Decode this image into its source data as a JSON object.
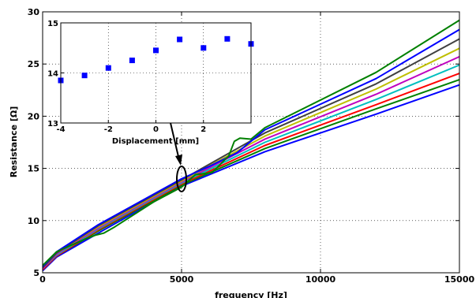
{
  "chart_data": [
    {
      "id": "main",
      "type": "line",
      "xlabel": "frequency [Hz]",
      "ylabel": "Resistance [Ω]",
      "xlim": [
        0,
        15000
      ],
      "ylim": [
        5,
        30
      ],
      "xticks": [
        0,
        5000,
        10000,
        15000
      ],
      "yticks": [
        5,
        10,
        15,
        20,
        25,
        30
      ],
      "grid": true,
      "series": [
        {
          "color": "#0000ff",
          "values": [
            [
              0,
              5.2
            ],
            [
              500,
              6.5
            ],
            [
              2000,
              8.8
            ],
            [
              5000,
              13.3
            ],
            [
              8000,
              16.6
            ],
            [
              12000,
              20.2
            ],
            [
              15000,
              23.0
            ]
          ]
        },
        {
          "color": "#008000",
          "values": [
            [
              0,
              5.3
            ],
            [
              500,
              6.6
            ],
            [
              2000,
              9.0
            ],
            [
              5000,
              13.4
            ],
            [
              8000,
              16.9
            ],
            [
              12000,
              20.7
            ],
            [
              15000,
              23.5
            ]
          ]
        },
        {
          "color": "#ff0000",
          "values": [
            [
              0,
              5.3
            ],
            [
              500,
              6.6
            ],
            [
              2000,
              9.1
            ],
            [
              5000,
              13.5
            ],
            [
              8000,
              17.2
            ],
            [
              12000,
              21.1
            ],
            [
              15000,
              24.1
            ]
          ]
        },
        {
          "color": "#00bfbf",
          "values": [
            [
              0,
              5.4
            ],
            [
              500,
              6.7
            ],
            [
              2000,
              9.2
            ],
            [
              5000,
              13.6
            ],
            [
              8000,
              17.5
            ],
            [
              12000,
              21.6
            ],
            [
              15000,
              24.9
            ]
          ]
        },
        {
          "color": "#bf00bf",
          "values": [
            [
              0,
              5.4
            ],
            [
              500,
              6.8
            ],
            [
              2000,
              9.3
            ],
            [
              5000,
              13.7
            ],
            [
              8000,
              17.8
            ],
            [
              12000,
              22.1
            ],
            [
              15000,
              25.7
            ]
          ]
        },
        {
          "color": "#bfbf00",
          "values": [
            [
              0,
              5.5
            ],
            [
              500,
              6.9
            ],
            [
              2000,
              9.4
            ],
            [
              5000,
              13.8
            ],
            [
              8000,
              18.1
            ],
            [
              12000,
              22.6
            ],
            [
              15000,
              26.5
            ]
          ]
        },
        {
          "color": "#404040",
          "values": [
            [
              0,
              5.5
            ],
            [
              500,
              6.9
            ],
            [
              2000,
              9.5
            ],
            [
              5000,
              13.9
            ],
            [
              8000,
              18.4
            ],
            [
              12000,
              23.1
            ],
            [
              15000,
              27.4
            ]
          ]
        },
        {
          "color": "#0000ff",
          "values": [
            [
              0,
              5.6
            ],
            [
              500,
              7.0
            ],
            [
              2000,
              9.6
            ],
            [
              5000,
              14.0
            ],
            [
              6000,
              15.2
            ],
            [
              7000,
              16.5
            ],
            [
              8000,
              18.7
            ],
            [
              12000,
              23.6
            ],
            [
              15000,
              28.3
            ]
          ]
        },
        {
          "color": "#008000",
          "values": [
            [
              0,
              5.7
            ],
            [
              500,
              7.0
            ],
            [
              1500,
              8.2
            ],
            [
              1900,
              8.6
            ],
            [
              2200,
              8.8
            ],
            [
              2600,
              9.4
            ],
            [
              4000,
              11.8
            ],
            [
              5000,
              13.2
            ],
            [
              5500,
              14.4
            ],
            [
              6100,
              14.6
            ],
            [
              6700,
              16.2
            ],
            [
              6900,
              17.6
            ],
            [
              7100,
              17.9
            ],
            [
              7500,
              17.8
            ],
            [
              8000,
              18.9
            ],
            [
              12000,
              24.2
            ],
            [
              15000,
              29.2
            ]
          ]
        }
      ]
    },
    {
      "id": "inset",
      "type": "scatter",
      "xlabel": "Displacement [mm]",
      "ylabel": "",
      "xlim": [
        -4,
        4
      ],
      "ylim": [
        13,
        15
      ],
      "xticks": [
        -4,
        -2,
        0,
        2
      ],
      "yticks": [
        13,
        14,
        15
      ],
      "grid": true,
      "marker_color": "#0000ff",
      "x": [
        -4,
        -3,
        -2,
        -1,
        0,
        1,
        2,
        3,
        4
      ],
      "y": [
        13.85,
        13.95,
        14.1,
        14.25,
        14.45,
        14.67,
        14.5,
        14.68,
        14.58
      ]
    }
  ]
}
